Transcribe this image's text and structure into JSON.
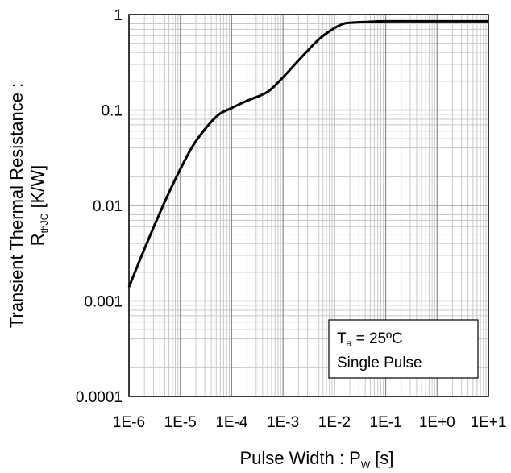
{
  "chart_data": {
    "type": "line",
    "x_scale": "log",
    "y_scale": "log",
    "xlim": [
      1e-06,
      10
    ],
    "ylim": [
      0.0001,
      1
    ],
    "grid": true,
    "x_tick_labels": [
      "1E-6",
      "1E-5",
      "1E-4",
      "1E-3",
      "1E-2",
      "1E-1",
      "1E+0",
      "1E+1"
    ],
    "y_tick_labels": [
      "0.0001",
      "0.001",
      "0.01",
      "0.1",
      "1"
    ],
    "xlabel": {
      "main": "Pulse Width : P",
      "sub": "W",
      "unit": " [s]"
    },
    "ylabel": {
      "line1": "Transient Thermal Resistance :",
      "main": "R",
      "sub": "thJC",
      "unit": " [K/W]"
    },
    "annotation": {
      "line1_main": "T",
      "line1_sub": "a",
      "line1_rest": " = 25ºC",
      "line2": "Single Pulse"
    },
    "line_color": "#000000",
    "series": [
      {
        "x": [
          1e-06,
          2e-06,
          5e-06,
          1e-05,
          2e-05,
          5e-05,
          0.0001,
          0.0002,
          0.0005,
          0.001,
          0.002,
          0.005,
          0.01,
          0.015,
          0.02,
          0.05,
          0.1,
          1,
          10
        ],
        "values": [
          0.0014,
          0.0035,
          0.011,
          0.024,
          0.047,
          0.085,
          0.105,
          0.125,
          0.155,
          0.22,
          0.33,
          0.55,
          0.72,
          0.8,
          0.82,
          0.84,
          0.85,
          0.85,
          0.85
        ]
      }
    ]
  }
}
